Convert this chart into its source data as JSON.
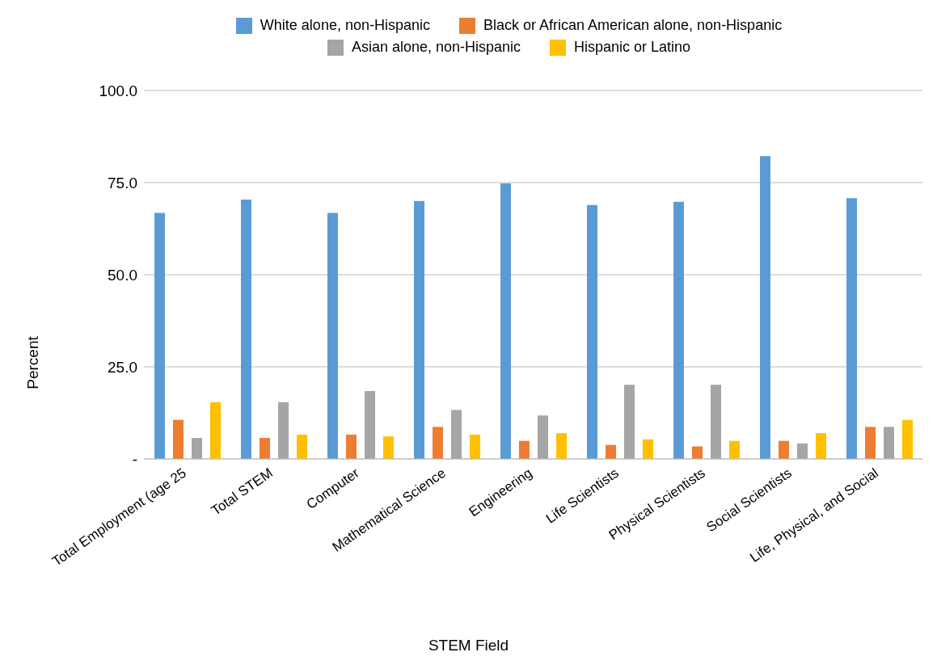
{
  "chart_data": {
    "type": "bar",
    "xlabel": "STEM Field",
    "ylabel": "Percent",
    "categories": [
      "Total Employment (age 25",
      "Total STEM",
      "Computer",
      "Mathematical Science",
      "Engineering",
      "Life Scientists",
      "Physical Scientists",
      "Social Scientists",
      "Life, Physical, and Social"
    ],
    "series": [
      {
        "name": "White alone, non-Hispanic",
        "color": "#5b9bd5",
        "values": [
          66.8,
          70.4,
          66.8,
          70.0,
          74.8,
          68.9,
          69.8,
          82.2,
          70.8
        ]
      },
      {
        "name": "Black or African American alone, non-Hispanic",
        "color": "#ed7d31",
        "values": [
          10.6,
          5.7,
          6.6,
          8.7,
          4.9,
          3.8,
          3.4,
          4.9,
          8.7
        ]
      },
      {
        "name": "Asian alone, non-Hispanic",
        "color": "#a5a5a5",
        "values": [
          5.7,
          15.4,
          18.4,
          13.3,
          11.8,
          20.1,
          20.1,
          4.2,
          8.7
        ]
      },
      {
        "name": "Hispanic or Latino",
        "color": "#ffc000",
        "values": [
          15.4,
          6.6,
          6.1,
          6.6,
          7.0,
          5.3,
          4.9,
          7.0,
          10.6
        ]
      }
    ],
    "ylim": [
      0,
      100
    ],
    "yticks": [
      {
        "value": 0,
        "label": "-"
      },
      {
        "value": 25,
        "label": "25.0"
      },
      {
        "value": 50,
        "label": "50.0"
      },
      {
        "value": 75,
        "label": "75.0"
      },
      {
        "value": 100,
        "label": "100.0"
      }
    ],
    "grid": "y",
    "legend": "top"
  }
}
